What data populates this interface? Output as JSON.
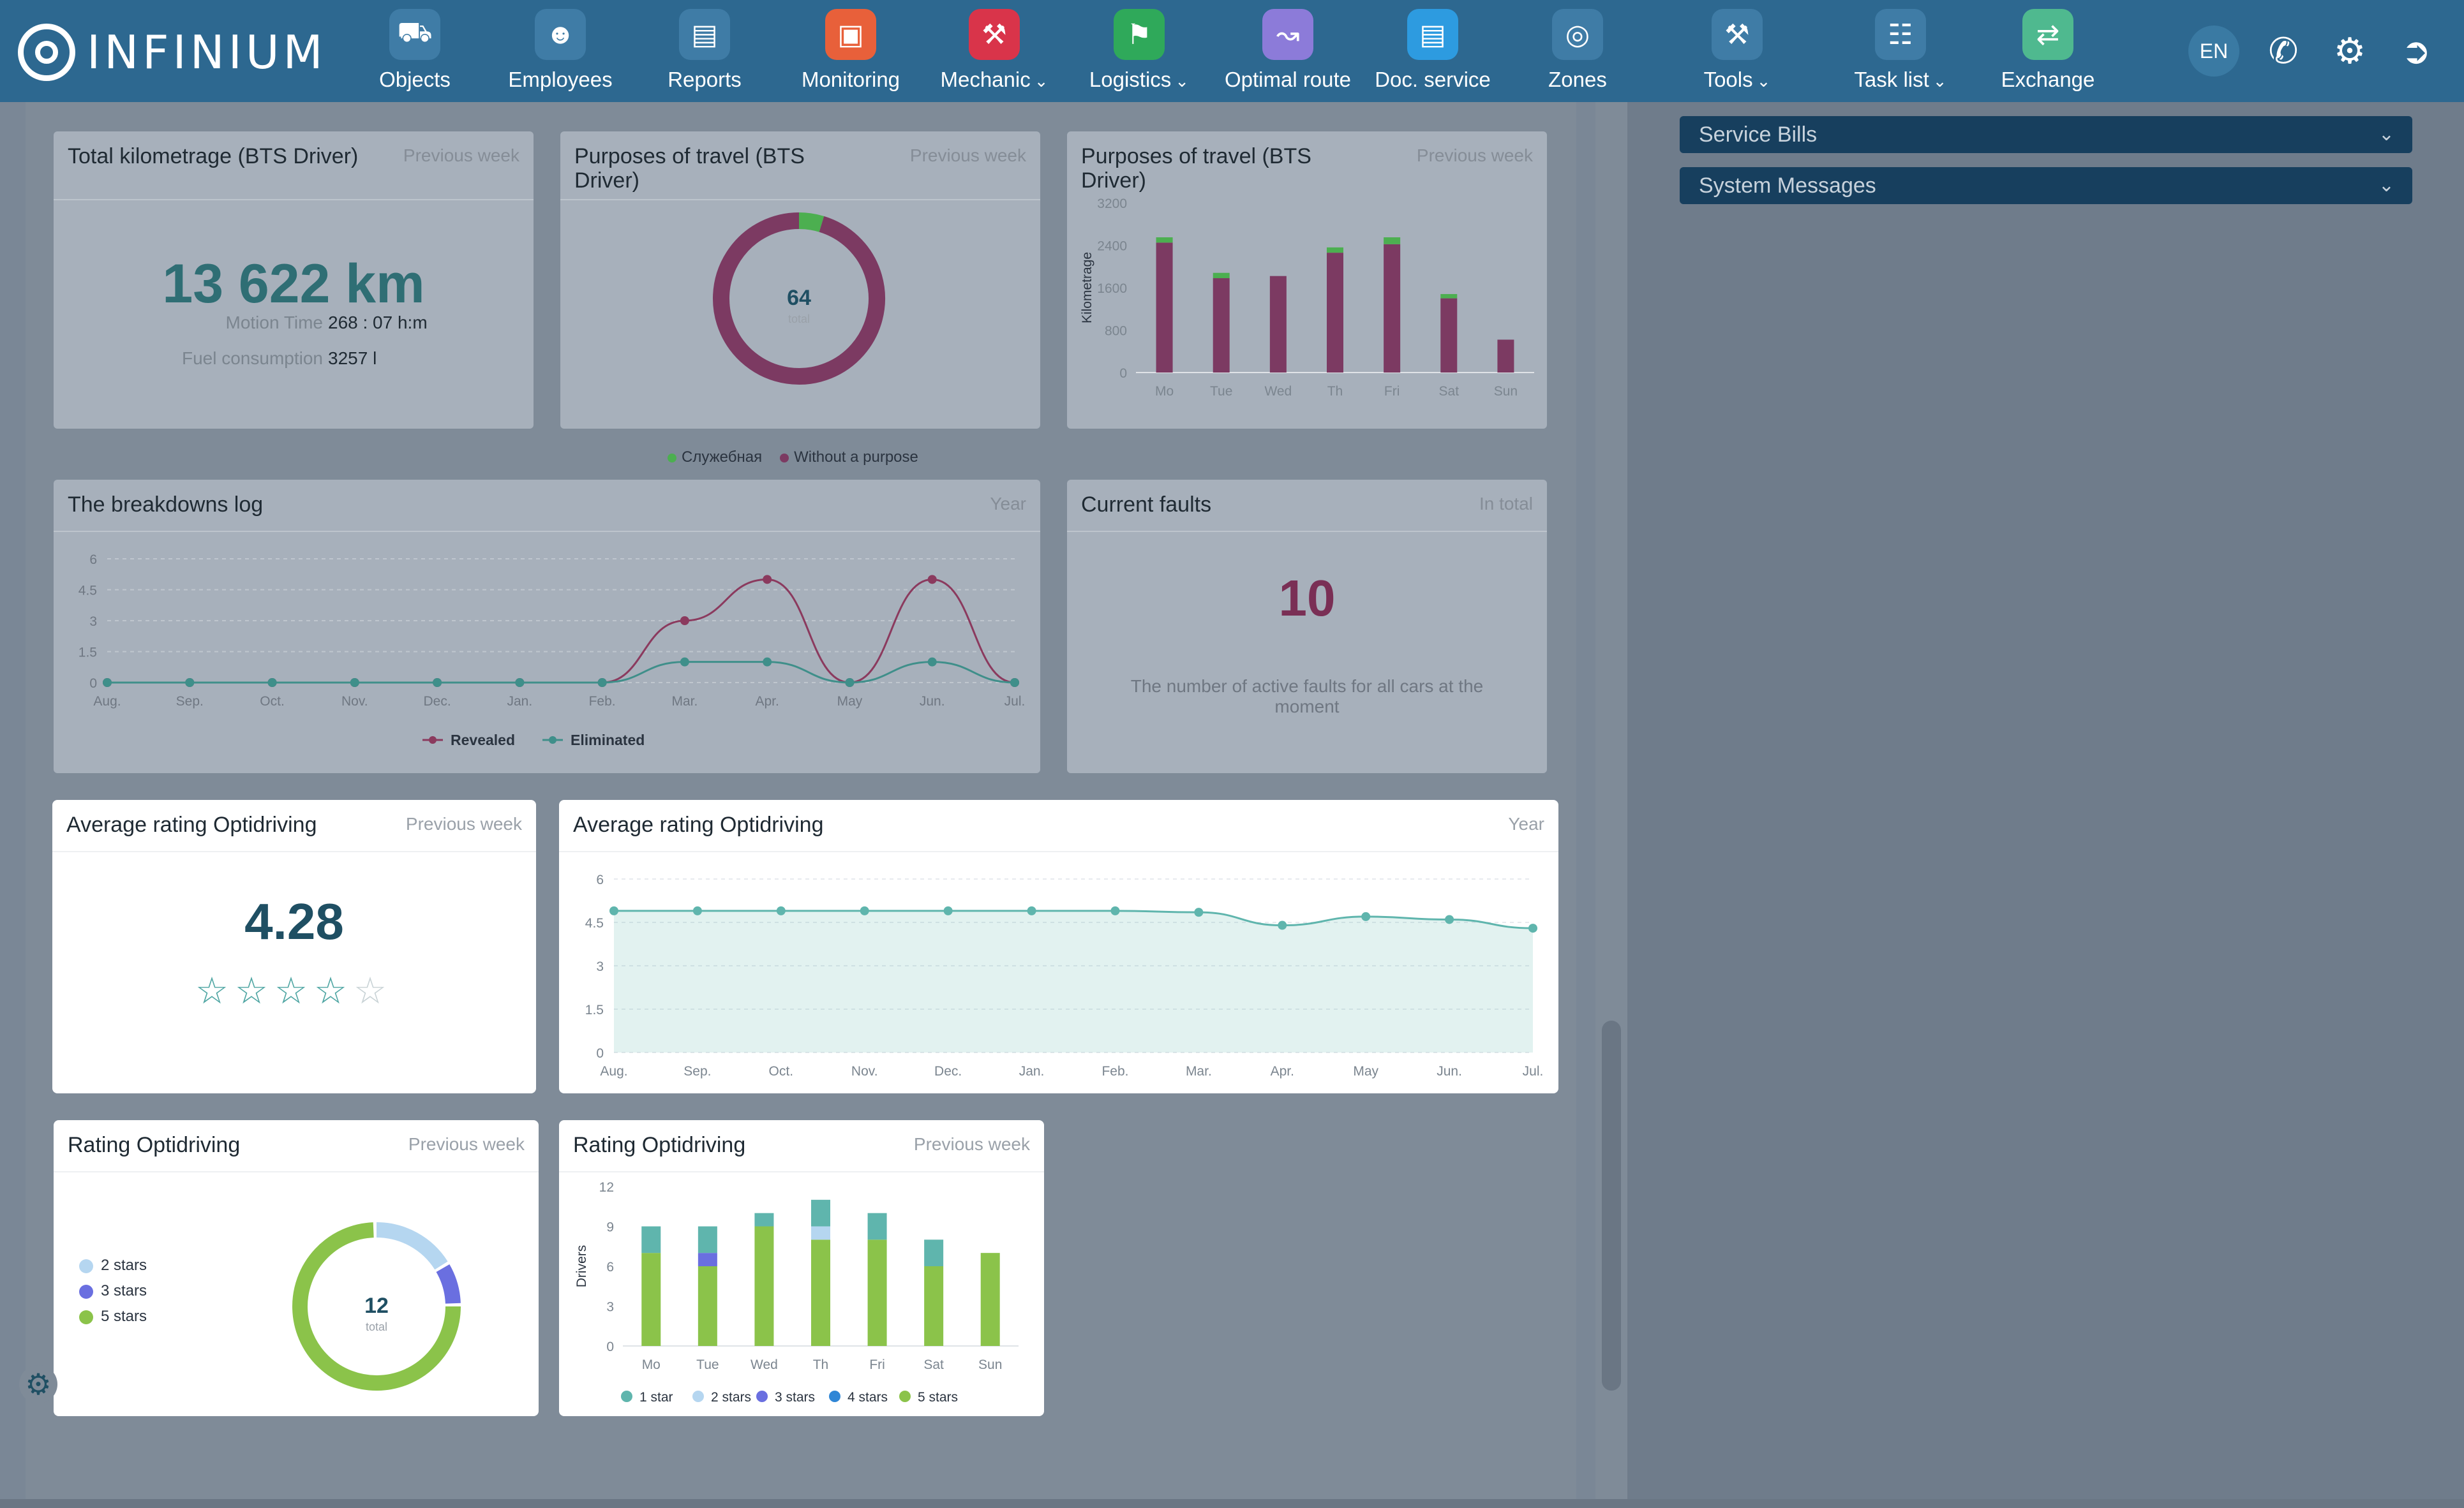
{
  "app": {
    "logo_text": "INFINIUM"
  },
  "nav": [
    {
      "label": "Objects",
      "icon": "truck-icon",
      "color": "#3f7ca6",
      "dropdown": false
    },
    {
      "label": "Employees",
      "icon": "people-icon",
      "color": "#3f7ca6",
      "dropdown": false
    },
    {
      "label": "Reports",
      "icon": "clipboard-icon",
      "color": "#3f7ca6",
      "dropdown": false
    },
    {
      "label": "Monitoring",
      "icon": "monitor-icon",
      "color": "#e8603a",
      "dropdown": false
    },
    {
      "label": "Mechanic",
      "icon": "wrench-icon",
      "color": "#d9344a",
      "dropdown": true
    },
    {
      "label": "Logistics",
      "icon": "map-pin-icon",
      "color": "#2fa95a",
      "dropdown": true
    },
    {
      "label": "Optimal route",
      "icon": "route-icon",
      "color": "#8c7bd9",
      "dropdown": false
    },
    {
      "label": "Doc. service",
      "icon": "document-chat-icon",
      "color": "#2d9be0",
      "dropdown": false
    },
    {
      "label": "Zones",
      "icon": "zones-pin-icon",
      "color": "#3f7ca6",
      "dropdown": false
    },
    {
      "label": "Tools",
      "icon": "tools-icon",
      "color": "#3f7ca6",
      "dropdown": true
    },
    {
      "label": "Task list",
      "icon": "task-list-icon",
      "color": "#3f7ca6",
      "dropdown": true
    },
    {
      "label": "Exchange",
      "icon": "exchange-icon",
      "color": "#4fb98f",
      "dropdown": false
    }
  ],
  "header_tools": {
    "lang": "EN"
  },
  "side_panels": [
    "Service Bills",
    "System Messages"
  ],
  "cards": {
    "kilometrage": {
      "title": "Total kilometrage (BTS Driver)",
      "period": "Previous week",
      "value": "13 622 km",
      "motion_label": "Motion Time",
      "motion_value": "268 : 07 h:m",
      "fuel_label": "Fuel consumption",
      "fuel_value": "3257 l"
    },
    "purposes_donut": {
      "title": "Purposes of travel (BTS Driver)",
      "period": "Previous week",
      "total_value": "64",
      "total_label": "total"
    },
    "purposes_bar": {
      "title": "Purposes of travel (BTS Driver)",
      "period": "Previous week"
    },
    "purposes_legend": [
      "Служебная",
      "Without a purpose"
    ],
    "breakdowns": {
      "title": "The breakdowns log",
      "period": "Year"
    },
    "faults": {
      "title": "Current faults",
      "period": "In total",
      "value": "10",
      "description": "The number of active faults for all cars at the moment"
    },
    "avg_rating": {
      "title": "Average rating Optidriving",
      "period": "Previous week",
      "value": "4.28"
    },
    "avg_rating_line": {
      "title": "Average rating Optidriving",
      "period": "Year"
    },
    "rating_donut": {
      "title": "Rating Optidriving",
      "period": "Previous week",
      "total_value": "12",
      "total_label": "total",
      "legend": [
        "2 stars",
        "3 stars",
        "5 stars"
      ]
    },
    "rating_bar": {
      "title": "Rating Optidriving",
      "period": "Previous week"
    }
  },
  "chart_data": [
    {
      "id": "purposes_donut",
      "type": "pie",
      "categories": [
        "Служебная",
        "Without a purpose"
      ],
      "values": [
        3,
        61
      ],
      "colors": [
        "#4caf50",
        "#7c3a62"
      ]
    },
    {
      "id": "purposes_bar",
      "type": "bar",
      "categories": [
        "Mo",
        "Tue",
        "Wed",
        "Th",
        "Fri",
        "Sat",
        "Sun"
      ],
      "ylabel": "Kilometrage",
      "ylim": [
        0,
        3200
      ],
      "yticks": [
        0,
        800,
        1600,
        2400,
        3200
      ],
      "series": [
        {
          "name": "Without a purpose",
          "color": "#7c3a62",
          "values": [
            2450,
            1780,
            1820,
            2260,
            2420,
            1400,
            620
          ]
        },
        {
          "name": "Служебная",
          "color": "#4caf50",
          "values": [
            100,
            100,
            0,
            100,
            130,
            80,
            0
          ]
        }
      ]
    },
    {
      "id": "breakdowns",
      "type": "line",
      "categories": [
        "Aug.",
        "Sep.",
        "Oct.",
        "Nov.",
        "Dec.",
        "Jan.",
        "Feb.",
        "Mar.",
        "Apr.",
        "May",
        "Jun.",
        "Jul."
      ],
      "ylim": [
        0,
        6
      ],
      "yticks": [
        "0",
        "1.5",
        "3",
        "4.5",
        "6"
      ],
      "series": [
        {
          "name": "Revealed",
          "color": "#8b3a5e",
          "values": [
            0,
            0,
            0,
            0,
            0,
            0,
            0,
            3,
            5,
            0,
            5,
            0
          ]
        },
        {
          "name": "Eliminated",
          "color": "#3f8f8a",
          "values": [
            0,
            0,
            0,
            0,
            0,
            0,
            0,
            1,
            1,
            0,
            1,
            0
          ]
        }
      ]
    },
    {
      "id": "avg_rating_line",
      "type": "area",
      "categories": [
        "Aug.",
        "Sep.",
        "Oct.",
        "Nov.",
        "Dec.",
        "Jan.",
        "Feb.",
        "Mar.",
        "Apr.",
        "May",
        "Jun.",
        "Jul."
      ],
      "ylim": [
        0,
        6
      ],
      "yticks": [
        "0",
        "1.5",
        "3",
        "4.5",
        "6"
      ],
      "series": [
        {
          "color": "#5fb5ad",
          "values": [
            4.9,
            4.9,
            4.9,
            4.9,
            4.9,
            4.9,
            4.9,
            4.85,
            4.4,
            4.7,
            4.6,
            4.3
          ]
        }
      ]
    },
    {
      "id": "rating_donut",
      "type": "pie",
      "categories": [
        "2 stars",
        "3 stars",
        "5 stars"
      ],
      "values": [
        2,
        1,
        9
      ],
      "colors": [
        "#b5d6f0",
        "#6a6fe0",
        "#8bc34a"
      ]
    },
    {
      "id": "rating_bar",
      "type": "bar",
      "categories": [
        "Mo",
        "Tue",
        "Wed",
        "Th",
        "Fri",
        "Sat",
        "Sun"
      ],
      "ylabel": "Drivers",
      "ylim": [
        0,
        12
      ],
      "yticks": [
        0,
        3,
        6,
        9,
        12
      ],
      "series": [
        {
          "name": "5 stars",
          "color": "#8bc34a",
          "values": [
            7,
            6,
            9,
            8,
            8,
            6,
            7
          ]
        },
        {
          "name": "4 stars",
          "color": "#2f86d6",
          "values": [
            0,
            0,
            0,
            0,
            0,
            0,
            0
          ]
        },
        {
          "name": "3 stars",
          "color": "#6a6fe0",
          "values": [
            0,
            1,
            0,
            0,
            0,
            0,
            0
          ]
        },
        {
          "name": "2 stars",
          "color": "#b5d6f0",
          "values": [
            0,
            0,
            0,
            1,
            0,
            0,
            0
          ]
        },
        {
          "name": "1 star",
          "color": "#5fb5ad",
          "values": [
            2,
            2,
            1,
            2,
            2,
            2,
            0
          ]
        }
      ]
    }
  ]
}
